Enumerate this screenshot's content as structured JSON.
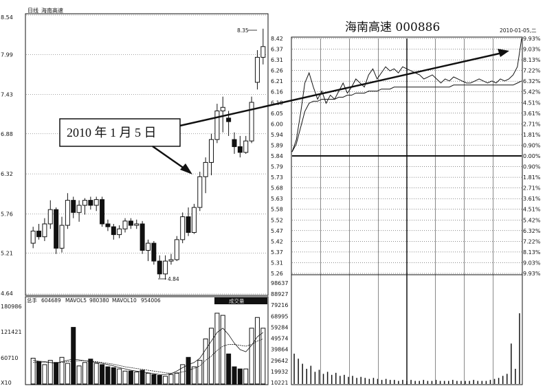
{
  "chart_data": [
    {
      "type": "candlestick",
      "panel_label": "日线",
      "stock_name": "海南高速",
      "y_ticks": [
        "8.54",
        "7.99",
        "7.43",
        "6.88",
        "6.32",
        "5.76",
        "5.21",
        "4.64"
      ],
      "ylim": [
        4.64,
        8.54
      ],
      "high_marker": "8.35",
      "low_marker": "4.84",
      "candles": [
        {
          "o": 5.35,
          "h": 5.58,
          "l": 5.28,
          "c": 5.52
        },
        {
          "o": 5.52,
          "h": 5.62,
          "l": 5.4,
          "c": 5.44
        },
        {
          "o": 5.44,
          "h": 5.7,
          "l": 5.38,
          "c": 5.62
        },
        {
          "o": 5.62,
          "h": 5.95,
          "l": 5.55,
          "c": 5.82
        },
        {
          "o": 5.82,
          "h": 5.85,
          "l": 5.2,
          "c": 5.28
        },
        {
          "o": 5.28,
          "h": 5.72,
          "l": 5.22,
          "c": 5.6
        },
        {
          "o": 5.6,
          "h": 6.05,
          "l": 5.55,
          "c": 5.95
        },
        {
          "o": 5.95,
          "h": 6.0,
          "l": 5.7,
          "c": 5.78
        },
        {
          "o": 5.78,
          "h": 5.95,
          "l": 5.65,
          "c": 5.88
        },
        {
          "o": 5.88,
          "h": 5.98,
          "l": 5.75,
          "c": 5.95
        },
        {
          "o": 5.95,
          "h": 6.0,
          "l": 5.82,
          "c": 5.88
        },
        {
          "o": 5.88,
          "h": 6.0,
          "l": 5.8,
          "c": 5.96
        },
        {
          "o": 5.96,
          "h": 6.0,
          "l": 5.58,
          "c": 5.62
        },
        {
          "o": 5.62,
          "h": 5.68,
          "l": 5.52,
          "c": 5.58
        },
        {
          "o": 5.58,
          "h": 5.62,
          "l": 5.4,
          "c": 5.47
        },
        {
          "o": 5.47,
          "h": 5.6,
          "l": 5.42,
          "c": 5.55
        },
        {
          "o": 5.55,
          "h": 5.7,
          "l": 5.5,
          "c": 5.66
        },
        {
          "o": 5.66,
          "h": 5.7,
          "l": 5.55,
          "c": 5.6
        },
        {
          "o": 5.6,
          "h": 5.68,
          "l": 5.55,
          "c": 5.62
        },
        {
          "o": 5.62,
          "h": 5.66,
          "l": 5.2,
          "c": 5.25
        },
        {
          "o": 5.25,
          "h": 5.4,
          "l": 5.1,
          "c": 5.35
        },
        {
          "o": 5.35,
          "h": 5.38,
          "l": 5.05,
          "c": 5.1
        },
        {
          "o": 5.1,
          "h": 5.18,
          "l": 4.86,
          "c": 4.92
        },
        {
          "o": 4.92,
          "h": 5.18,
          "l": 4.84,
          "c": 5.1
        },
        {
          "o": 5.1,
          "h": 5.2,
          "l": 5.05,
          "c": 5.12
        },
        {
          "o": 5.12,
          "h": 5.45,
          "l": 5.1,
          "c": 5.4
        },
        {
          "o": 5.4,
          "h": 5.78,
          "l": 5.35,
          "c": 5.72
        },
        {
          "o": 5.72,
          "h": 5.85,
          "l": 5.45,
          "c": 5.5
        },
        {
          "o": 5.5,
          "h": 5.9,
          "l": 5.48,
          "c": 5.85
        },
        {
          "o": 5.85,
          "h": 6.35,
          "l": 5.8,
          "c": 6.28
        },
        {
          "o": 6.28,
          "h": 6.55,
          "l": 6.05,
          "c": 6.48
        },
        {
          "o": 6.48,
          "h": 6.88,
          "l": 6.3,
          "c": 6.8
        },
        {
          "o": 6.8,
          "h": 7.3,
          "l": 6.75,
          "c": 7.2
        },
        {
          "o": 7.2,
          "h": 7.4,
          "l": 6.9,
          "c": 7.25
        },
        {
          "o": 7.1,
          "h": 7.2,
          "l": 6.85,
          "c": 7.05
        },
        {
          "o": 6.8,
          "h": 6.9,
          "l": 6.6,
          "c": 6.7
        },
        {
          "o": 6.7,
          "h": 6.85,
          "l": 6.55,
          "c": 6.62
        },
        {
          "o": 6.62,
          "h": 6.85,
          "l": 6.6,
          "c": 6.78
        },
        {
          "o": 6.78,
          "h": 7.4,
          "l": 6.75,
          "c": 7.32
        },
        {
          "o": 7.6,
          "h": 8.05,
          "l": 7.5,
          "c": 7.95
        },
        {
          "o": 7.95,
          "h": 8.35,
          "l": 7.85,
          "c": 8.1
        }
      ]
    },
    {
      "type": "bar",
      "panel_label": "总手",
      "indicators": [
        {
          "name": "总手",
          "value": "604689"
        },
        {
          "name": "MAVOL5",
          "value": "980380"
        },
        {
          "name": "MAVOL10",
          "value": "954006"
        }
      ],
      "button_label": "成交量",
      "y_ticks": [
        "180986",
        "121421",
        "60710",
        "X10"
      ],
      "ylim": [
        0,
        180986
      ],
      "values": [
        60000,
        52000,
        45000,
        55000,
        50000,
        62000,
        48000,
        132000,
        42000,
        50000,
        58000,
        48000,
        45000,
        40000,
        38000,
        35000,
        30000,
        30000,
        28000,
        32000,
        25000,
        22000,
        20000,
        18000,
        22000,
        25000,
        45000,
        62000,
        40000,
        55000,
        105000,
        130000,
        165000,
        160000,
        70000,
        40000,
        35000,
        35000,
        130000,
        155000,
        130000
      ],
      "mavol5": [
        55000,
        53000,
        52000,
        50000,
        48000,
        52000,
        55000,
        58000,
        56000,
        54000,
        52000,
        50000,
        48000,
        45000,
        42000,
        38000,
        35000,
        32000,
        30000,
        28000,
        26000,
        24000,
        22000,
        22000,
        24000,
        30000,
        38000,
        45000,
        50000,
        60000,
        80000,
        100000,
        120000,
        130000,
        115000,
        95000,
        80000,
        75000,
        90000,
        110000,
        120000
      ],
      "mavol10": [
        50000,
        50000,
        50000,
        50000,
        50000,
        50000,
        52000,
        53000,
        54000,
        54000,
        53000,
        52000,
        50000,
        48000,
        46000,
        43000,
        40000,
        38000,
        36000,
        34000,
        32000,
        30000,
        28000,
        26000,
        25000,
        26000,
        28000,
        32000,
        36000,
        42000,
        55000,
        65000,
        78000,
        88000,
        92000,
        92000,
        90000,
        88000,
        92000,
        100000,
        105000
      ]
    },
    {
      "type": "line",
      "title": "海南高速 000886",
      "date_label": "2010-01-05,二",
      "price_ticks": [
        "8.42",
        "6.37",
        "6.31",
        "6.26",
        "6.21",
        "6.16",
        "6.10",
        "6.05",
        "6.00",
        "5.94",
        "5.89",
        "5.84",
        "5.79",
        "5.73",
        "5.68",
        "5.63",
        "5.58",
        "5.52",
        "5.47",
        "5.42",
        "5.37",
        "5.31",
        "5.26"
      ],
      "pct_ticks": [
        "9.93%",
        "9.03%",
        "8.13%",
        "7.22%",
        "6.32%",
        "5.42%",
        "4.51%",
        "3.61%",
        "2.71%",
        "1.81%",
        "0.90%",
        "0.00%",
        "0.90%",
        "1.81%",
        "2.71%",
        "3.61%",
        "4.51%",
        "5.42%",
        "6.32%",
        "7.22%",
        "8.13%",
        "9.03%",
        "9.93%"
      ],
      "prev_close": 5.84,
      "ylim": [
        5.26,
        6.42
      ],
      "price": [
        5.86,
        5.92,
        6.05,
        6.2,
        6.25,
        6.18,
        6.12,
        6.16,
        6.1,
        6.14,
        6.12,
        6.16,
        6.2,
        6.15,
        6.18,
        6.22,
        6.2,
        6.18,
        6.24,
        6.27,
        6.22,
        6.25,
        6.28,
        6.26,
        6.27,
        6.25,
        6.28,
        6.27,
        6.26,
        6.25,
        6.24,
        6.22,
        6.23,
        6.24,
        6.22,
        6.2,
        6.22,
        6.21,
        6.23,
        6.22,
        6.21,
        6.2,
        6.2,
        6.21,
        6.22,
        6.21,
        6.2,
        6.21,
        6.2,
        6.22,
        6.21,
        6.22,
        6.24,
        6.28,
        6.42
      ],
      "avg": [
        5.86,
        5.9,
        5.98,
        6.06,
        6.1,
        6.11,
        6.11,
        6.12,
        6.12,
        6.12,
        6.12,
        6.13,
        6.13,
        6.14,
        6.14,
        6.15,
        6.15,
        6.15,
        6.16,
        6.16,
        6.16,
        6.17,
        6.17,
        6.17,
        6.18,
        6.18,
        6.18,
        6.18,
        6.18,
        6.18,
        6.18,
        6.18,
        6.18,
        6.18,
        6.18,
        6.18,
        6.18,
        6.18,
        6.19,
        6.19,
        6.19,
        6.19,
        6.19,
        6.19,
        6.19,
        6.19,
        6.19,
        6.19,
        6.19,
        6.19,
        6.19,
        6.19,
        6.19,
        6.2,
        6.21
      ],
      "vol_ticks": [
        "98637",
        "88927",
        "79216",
        "68995",
        "59284",
        "49574",
        "39864",
        "29642",
        "19932",
        "10221"
      ],
      "vol_ylim": [
        0,
        98637
      ],
      "volume": [
        30000,
        25000,
        20000,
        15000,
        18000,
        12000,
        14000,
        10000,
        12000,
        9000,
        11000,
        8000,
        9000,
        7000,
        8000,
        6000,
        7000,
        6000,
        5000,
        6000,
        5000,
        4000,
        5000,
        4000,
        4000,
        3000,
        4000,
        3000,
        4000,
        3000,
        3000,
        4000,
        3000,
        3000,
        4000,
        3000,
        3000,
        3000,
        4000,
        3000,
        3000,
        3000,
        3000,
        4000,
        3000,
        3000,
        3000,
        4000,
        5000,
        6000,
        8000,
        10000,
        40000,
        15000,
        70000
      ]
    }
  ],
  "annotation": {
    "text": "2010 年 1 月 5 日"
  },
  "colors": {
    "up": "#ffffff",
    "down": "#111111",
    "line": "#111111",
    "grid": "#222222"
  }
}
